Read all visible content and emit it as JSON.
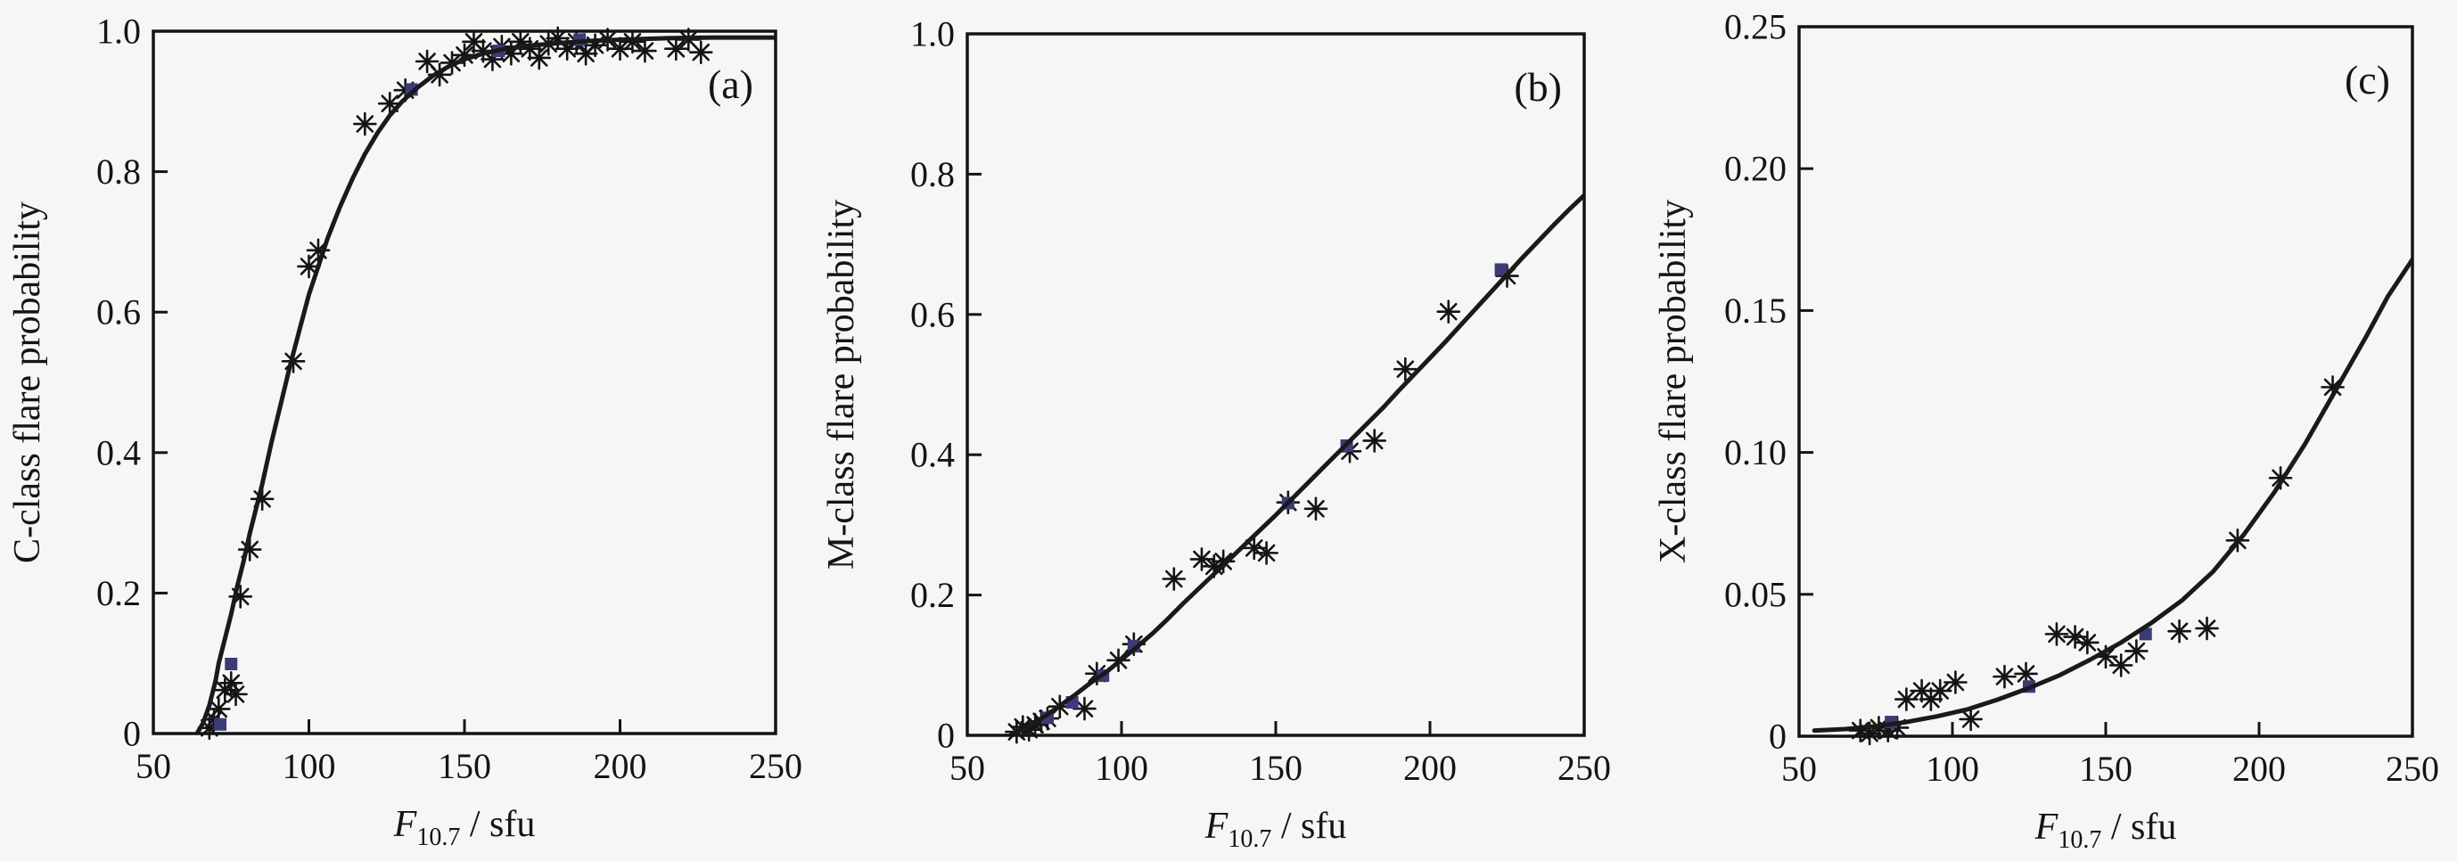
{
  "figure": {
    "background_color": "#f6f6f6",
    "ink_color": "#141414",
    "accent_marker_color": "#3b3b78"
  },
  "chart_data": [
    {
      "type": "scatter",
      "panel_label": "(a)",
      "ylabel": "C-class flare probability",
      "xlabel": {
        "variable": "F",
        "subscript": "10.7",
        "unit": " / sfu"
      },
      "xlim": [
        50,
        250
      ],
      "ylim": [
        0,
        1.0
      ],
      "xticks": [
        50,
        100,
        150,
        200,
        250
      ],
      "xtick_labels": [
        "50",
        "100",
        "150",
        "200",
        "250"
      ],
      "yticks": [
        0,
        0.2,
        0.4,
        0.6,
        0.8,
        1.0
      ],
      "ytick_labels": [
        "0",
        "0.2",
        "0.4",
        "0.6",
        "0.8",
        "1.0"
      ],
      "grid": false,
      "legend": null,
      "series": [
        {
          "name": "observed-frequency",
          "kind": "points",
          "marker": "asterisk",
          "color": "#141414",
          "points": [
            [
              68,
              0.008
            ],
            [
              69.5,
              0.02
            ],
            [
              71,
              0.035
            ],
            [
              73,
              0.062
            ],
            [
              75,
              0.072
            ],
            [
              76.5,
              0.056
            ],
            [
              78,
              0.195
            ],
            [
              81,
              0.262
            ],
            [
              85,
              0.334
            ],
            [
              95,
              0.53
            ],
            [
              100,
              0.665
            ],
            [
              103,
              0.688
            ],
            [
              118,
              0.868
            ],
            [
              126,
              0.897
            ],
            [
              131,
              0.916
            ],
            [
              138,
              0.957
            ],
            [
              142,
              0.938
            ],
            [
              146,
              0.955
            ],
            [
              150,
              0.966
            ],
            [
              153,
              0.985
            ],
            [
              156,
              0.972
            ],
            [
              159,
              0.96
            ],
            [
              162,
              0.978
            ],
            [
              165,
              0.968
            ],
            [
              168,
              0.985
            ],
            [
              171,
              0.975
            ],
            [
              174,
              0.962
            ],
            [
              177,
              0.982
            ],
            [
              180,
              0.99
            ],
            [
              183,
              0.975
            ],
            [
              186,
              0.985
            ],
            [
              189,
              0.968
            ],
            [
              192,
              0.98
            ],
            [
              196,
              0.988
            ],
            [
              200,
              0.975
            ],
            [
              204,
              0.985
            ],
            [
              208,
              0.972
            ],
            [
              218,
              0.975
            ],
            [
              222,
              0.988
            ],
            [
              226,
              0.97
            ]
          ]
        },
        {
          "name": "model-points",
          "kind": "points",
          "marker": "square",
          "color": "#3b3b78",
          "points": [
            [
              71.5,
              0.013
            ],
            [
              75,
              0.099
            ],
            [
              133,
              0.917
            ],
            [
              161,
              0.972
            ],
            [
              187,
              0.988
            ]
          ]
        },
        {
          "name": "fitted-curve",
          "kind": "line",
          "color": "#1a1a1a",
          "points": [
            [
              64,
              0
            ],
            [
              66,
              0.015
            ],
            [
              68,
              0.04
            ],
            [
              70,
              0.075
            ],
            [
              71,
              0.1
            ],
            [
              73,
              0.135
            ],
            [
              75,
              0.17
            ],
            [
              77,
              0.21
            ],
            [
              79,
              0.245
            ],
            [
              81,
              0.285
            ],
            [
              83,
              0.32
            ],
            [
              85,
              0.355
            ],
            [
              88,
              0.415
            ],
            [
              91,
              0.47
            ],
            [
              94,
              0.525
            ],
            [
              97,
              0.575
            ],
            [
              100,
              0.625
            ],
            [
              103,
              0.665
            ],
            [
              106,
              0.705
            ],
            [
              110,
              0.75
            ],
            [
              114,
              0.79
            ],
            [
              118,
              0.825
            ],
            [
              122,
              0.855
            ],
            [
              126,
              0.88
            ],
            [
              130,
              0.9
            ],
            [
              135,
              0.92
            ],
            [
              140,
              0.937
            ],
            [
              145,
              0.95
            ],
            [
              150,
              0.96
            ],
            [
              156,
              0.968
            ],
            [
              162,
              0.974
            ],
            [
              170,
              0.979
            ],
            [
              180,
              0.983
            ],
            [
              190,
              0.986
            ],
            [
              200,
              0.988
            ],
            [
              215,
              0.99
            ],
            [
              230,
              0.991
            ],
            [
              250,
              0.991
            ]
          ]
        }
      ]
    },
    {
      "type": "scatter",
      "panel_label": "(b)",
      "ylabel": "M-class flare probability",
      "xlabel": {
        "variable": "F",
        "subscript": "10.7",
        "unit": " / sfu"
      },
      "xlim": [
        50,
        250
      ],
      "ylim": [
        0,
        1.0
      ],
      "xticks": [
        50,
        100,
        150,
        200,
        250
      ],
      "xtick_labels": [
        "50",
        "100",
        "150",
        "200",
        "250"
      ],
      "yticks": [
        0,
        0.2,
        0.4,
        0.6,
        0.8,
        1.0
      ],
      "ytick_labels": [
        "0",
        "0.2",
        "0.4",
        "0.6",
        "0.8",
        "1.0"
      ],
      "grid": false,
      "legend": null,
      "series": [
        {
          "name": "observed-frequency",
          "kind": "points",
          "marker": "asterisk",
          "color": "#141414",
          "points": [
            [
              66,
              0.005
            ],
            [
              68,
              0.012
            ],
            [
              70,
              0.008
            ],
            [
              72,
              0.015
            ],
            [
              74,
              0.02
            ],
            [
              76,
              0.024
            ],
            [
              80,
              0.041
            ],
            [
              88,
              0.038
            ],
            [
              92,
              0.088
            ],
            [
              99,
              0.107
            ],
            [
              104,
              0.13
            ],
            [
              117,
              0.223
            ],
            [
              126,
              0.251
            ],
            [
              130,
              0.241
            ],
            [
              133,
              0.248
            ],
            [
              143,
              0.267
            ],
            [
              147,
              0.26
            ],
            [
              154,
              0.332
            ],
            [
              163,
              0.323
            ],
            [
              174,
              0.405
            ],
            [
              182,
              0.42
            ],
            [
              192,
              0.522
            ],
            [
              206,
              0.604
            ],
            [
              225,
              0.655
            ]
          ]
        },
        {
          "name": "model-points",
          "kind": "points",
          "marker": "square",
          "color": "#3b3b78",
          "points": [
            [
              76,
              0.025
            ],
            [
              84,
              0.047
            ],
            [
              94,
              0.085
            ],
            [
              104,
              0.127
            ],
            [
              154,
              0.331
            ],
            [
              173,
              0.413
            ],
            [
              223,
              0.664
            ]
          ]
        },
        {
          "name": "fitted-curve",
          "kind": "line",
          "color": "#1a1a1a",
          "points": [
            [
              64,
              0
            ],
            [
              68,
              0.008
            ],
            [
              72,
              0.018
            ],
            [
              76,
              0.03
            ],
            [
              80,
              0.042
            ],
            [
              85,
              0.058
            ],
            [
              90,
              0.075
            ],
            [
              95,
              0.09
            ],
            [
              100,
              0.108
            ],
            [
              105,
              0.126
            ],
            [
              110,
              0.145
            ],
            [
              115,
              0.166
            ],
            [
              120,
              0.188
            ],
            [
              125,
              0.209
            ],
            [
              130,
              0.23
            ],
            [
              135,
              0.251
            ],
            [
              140,
              0.272
            ],
            [
              145,
              0.293
            ],
            [
              150,
              0.314
            ],
            [
              155,
              0.336
            ],
            [
              160,
              0.358
            ],
            [
              165,
              0.38
            ],
            [
              170,
              0.402
            ],
            [
              175,
              0.424
            ],
            [
              180,
              0.446
            ],
            [
              185,
              0.468
            ],
            [
              190,
              0.492
            ],
            [
              195,
              0.515
            ],
            [
              200,
              0.538
            ],
            [
              205,
              0.561
            ],
            [
              210,
              0.585
            ],
            [
              215,
              0.609
            ],
            [
              220,
              0.633
            ],
            [
              225,
              0.657
            ],
            [
              230,
              0.681
            ],
            [
              235,
              0.704
            ],
            [
              240,
              0.727
            ],
            [
              245,
              0.749
            ],
            [
              250,
              0.77
            ]
          ]
        }
      ]
    },
    {
      "type": "scatter",
      "panel_label": "(c)",
      "ylabel": "X-class flare probability",
      "xlabel": {
        "variable": "F",
        "subscript": "10.7",
        "unit": " / sfu"
      },
      "xlim": [
        50,
        250
      ],
      "ylim": [
        0,
        0.25
      ],
      "xticks": [
        50,
        100,
        150,
        200,
        250
      ],
      "xtick_labels": [
        "50",
        "100",
        "150",
        "200",
        "250"
      ],
      "yticks": [
        0,
        0.05,
        0.1,
        0.15,
        0.2,
        0.25
      ],
      "ytick_labels": [
        "0",
        "0.05",
        "0.10",
        "0.15",
        "0.20",
        "0.25"
      ],
      "grid": false,
      "legend": null,
      "series": [
        {
          "name": "observed-frequency",
          "kind": "points",
          "marker": "asterisk",
          "color": "#141414",
          "points": [
            [
              70,
              0.002
            ],
            [
              73,
              0.001
            ],
            [
              76,
              0.003
            ],
            [
              79,
              0.002
            ],
            [
              82,
              0.003
            ],
            [
              85,
              0.013
            ],
            [
              90,
              0.016
            ],
            [
              93,
              0.013
            ],
            [
              96,
              0.016
            ],
            [
              101,
              0.019
            ],
            [
              106,
              0.006
            ],
            [
              117,
              0.021
            ],
            [
              124,
              0.022
            ],
            [
              134,
              0.036
            ],
            [
              140,
              0.035
            ],
            [
              144,
              0.033
            ],
            [
              150,
              0.028
            ],
            [
              155,
              0.025
            ],
            [
              160,
              0.03
            ],
            [
              174,
              0.037
            ],
            [
              183,
              0.038
            ],
            [
              193,
              0.069
            ],
            [
              207,
              0.091
            ],
            [
              224,
              0.123
            ]
          ]
        },
        {
          "name": "model-points",
          "kind": "points",
          "marker": "square",
          "color": "#3b3b78",
          "points": [
            [
              80,
              0.005
            ],
            [
              125,
              0.0175
            ],
            [
              163,
              0.036
            ]
          ]
        },
        {
          "name": "fitted-curve",
          "kind": "line",
          "color": "#1a1a1a",
          "points": [
            [
              55,
              0.002
            ],
            [
              65,
              0.0025
            ],
            [
              75,
              0.0035
            ],
            [
              85,
              0.005
            ],
            [
              95,
              0.007
            ],
            [
              105,
              0.0095
            ],
            [
              115,
              0.013
            ],
            [
              125,
              0.017
            ],
            [
              135,
              0.0215
            ],
            [
              145,
              0.027
            ],
            [
              155,
              0.033
            ],
            [
              165,
              0.04
            ],
            [
              175,
              0.048
            ],
            [
              185,
              0.058
            ],
            [
              195,
              0.071
            ],
            [
              205,
              0.086
            ],
            [
              215,
              0.103
            ],
            [
              225,
              0.122
            ],
            [
              235,
              0.141
            ],
            [
              242,
              0.155
            ],
            [
              250,
              0.168
            ]
          ]
        }
      ]
    }
  ]
}
